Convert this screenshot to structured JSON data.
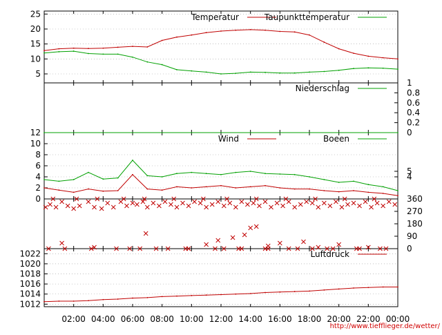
{
  "chart_data": [
    {
      "type": "line",
      "ylim": [
        2,
        26
      ],
      "yticks": [
        "25",
        "20",
        "15",
        "10",
        "5"
      ],
      "grid": "dotted horizontal",
      "legend_placement": "top-right",
      "series": [
        {
          "name": "Temperatur",
          "color": "#c00000",
          "x": [
            0,
            1,
            2,
            3,
            4,
            5,
            6,
            7,
            8,
            9,
            10,
            11,
            12,
            13,
            14,
            15,
            16,
            17,
            18,
            19,
            20,
            21,
            22,
            23,
            24
          ],
          "values": [
            12.8,
            13.4,
            13.6,
            13.5,
            13.6,
            13.9,
            14.2,
            14.0,
            16.2,
            17.3,
            18.0,
            18.8,
            19.3,
            19.6,
            19.8,
            19.6,
            19.2,
            19.0,
            18.0,
            15.6,
            13.4,
            11.9,
            10.9,
            10.4,
            10.0
          ]
        },
        {
          "name": "Taupunkttemperatur",
          "color": "#00a000",
          "x": [
            0,
            1,
            2,
            3,
            4,
            5,
            6,
            7,
            8,
            9,
            10,
            11,
            12,
            13,
            14,
            15,
            16,
            17,
            18,
            19,
            20,
            21,
            22,
            23,
            24
          ],
          "values": [
            12.0,
            12.4,
            12.6,
            11.8,
            11.6,
            11.6,
            10.6,
            9.0,
            8.1,
            6.4,
            6.0,
            5.6,
            5.0,
            5.2,
            5.6,
            5.5,
            5.3,
            5.3,
            5.6,
            5.8,
            6.2,
            6.8,
            7.0,
            6.9,
            6.6
          ]
        }
      ]
    },
    {
      "type": "line",
      "ylim": [
        0,
        1
      ],
      "yticks_right": [
        "1",
        "0.8",
        "0.6",
        "0.4",
        "0.2",
        "0"
      ],
      "legend_placement": "top-right",
      "series": [
        {
          "name": "Niederschlag",
          "color": "#00a000",
          "x": [
            0,
            24
          ],
          "values": [
            0,
            0
          ]
        }
      ]
    },
    {
      "type": "line",
      "ylim": [
        0,
        12
      ],
      "yticks": [
        "12",
        "10",
        "8",
        "6",
        "4",
        "2",
        "0"
      ],
      "yticks_right": [
        "5",
        "4"
      ],
      "legend_placement": "top-right",
      "series": [
        {
          "name": "Wind",
          "color": "#c00000",
          "x": [
            0,
            1,
            2,
            3,
            4,
            5,
            6,
            7,
            8,
            9,
            10,
            11,
            12,
            13,
            14,
            15,
            16,
            17,
            18,
            19,
            20,
            21,
            22,
            23,
            24
          ],
          "values": [
            2.0,
            1.6,
            1.2,
            1.8,
            1.4,
            1.5,
            4.4,
            1.8,
            1.6,
            2.2,
            2.0,
            2.2,
            2.4,
            2.0,
            2.2,
            2.4,
            2.0,
            1.8,
            1.8,
            1.5,
            1.3,
            1.5,
            1.2,
            1.0,
            0.6
          ]
        },
        {
          "name": "Boeen",
          "color": "#00a000",
          "x": [
            0,
            1,
            2,
            3,
            4,
            5,
            6,
            7,
            8,
            9,
            10,
            11,
            12,
            13,
            14,
            15,
            16,
            17,
            18,
            19,
            20,
            21,
            22,
            23,
            24
          ],
          "values": [
            3.5,
            3.2,
            3.5,
            4.8,
            3.6,
            3.8,
            7.0,
            4.2,
            4.0,
            4.6,
            4.8,
            4.6,
            4.4,
            4.8,
            5.0,
            4.6,
            4.5,
            4.4,
            4.0,
            3.5,
            3.0,
            3.2,
            2.6,
            2.2,
            1.5
          ]
        }
      ]
    },
    {
      "type": "scatter",
      "ylim": [
        0,
        360
      ],
      "yticks_right": [
        "360",
        "270",
        "180",
        "90",
        "0"
      ],
      "marker": "x",
      "color": "#c00000",
      "x": [
        0.1,
        0.4,
        0.8,
        1.2,
        1.6,
        2.0,
        2.4,
        3.0,
        3.4,
        3.9,
        4.3,
        4.7,
        5.2,
        5.6,
        6.0,
        6.3,
        6.7,
        7.0,
        7.4,
        7.8,
        8.2,
        8.6,
        9.0,
        9.4,
        9.8,
        10.2,
        10.6,
        11.0,
        11.4,
        11.8,
        12.2,
        12.6,
        13.0,
        13.4,
        13.8,
        14.2,
        14.6,
        15.0,
        15.4,
        15.8,
        16.2,
        16.6,
        17.0,
        17.4,
        17.8,
        18.2,
        18.6,
        19.0,
        19.4,
        19.8,
        20.2,
        20.6,
        21.0,
        21.4,
        21.8,
        22.2,
        22.6,
        23.0,
        23.4,
        23.8,
        0.6,
        2.2,
        3.6,
        5.4,
        6.8,
        8.8,
        10.8,
        12.4,
        14.4,
        16.4,
        18.4,
        20.4,
        22.4,
        0.3,
        1.4,
        3.2,
        4.9,
        6.5,
        8.4,
        9.6,
        11.6,
        13.2,
        15.2,
        17.2,
        19.2,
        21.2,
        23.2,
        6.9,
        11.0,
        11.8,
        12.8,
        13.6,
        14.0,
        14.4,
        15.2,
        16.0,
        17.6,
        18.6,
        20.0,
        22.0,
        1.2,
        3.4,
        5.8,
        7.6,
        9.8,
        12.2,
        13.4,
        15.0,
        16.6,
        18.2,
        19.6,
        21.4,
        22.8
      ],
      "values": [
        300,
        320,
        300,
        340,
        310,
        290,
        310,
        340,
        300,
        290,
        330,
        300,
        340,
        310,
        330,
        320,
        340,
        300,
        330,
        310,
        340,
        320,
        300,
        330,
        310,
        340,
        330,
        300,
        320,
        340,
        310,
        330,
        300,
        340,
        320,
        330,
        310,
        340,
        300,
        330,
        310,
        340,
        300,
        320,
        340,
        330,
        300,
        330,
        310,
        340,
        300,
        320,
        330,
        310,
        340,
        300,
        330,
        310,
        340,
        320,
        360,
        360,
        360,
        360,
        360,
        360,
        360,
        360,
        360,
        360,
        360,
        360,
        360,
        0,
        0,
        0,
        0,
        0,
        0,
        0,
        0,
        0,
        0,
        0,
        0,
        0,
        0,
        110,
        30,
        60,
        80,
        100,
        150,
        160,
        20,
        40,
        50,
        10,
        30,
        10,
        40,
        10,
        0,
        0,
        0,
        0,
        0,
        0,
        0,
        0,
        0,
        0,
        0
      ]
    },
    {
      "type": "line",
      "ylim": [
        1011.5,
        1023
      ],
      "yticks": [
        "1022",
        "1020",
        "1018",
        "1016",
        "1014",
        "1012"
      ],
      "legend_placement": "top-right",
      "series": [
        {
          "name": "Luftdruck",
          "color": "#c00000",
          "x": [
            0,
            1,
            2,
            3,
            4,
            5,
            6,
            7,
            8,
            9,
            10,
            11,
            12,
            13,
            14,
            15,
            16,
            17,
            18,
            19,
            20,
            21,
            22,
            23,
            24
          ],
          "values": [
            1012.5,
            1012.6,
            1012.6,
            1012.7,
            1012.9,
            1013.0,
            1013.2,
            1013.3,
            1013.5,
            1013.6,
            1013.7,
            1013.8,
            1013.9,
            1014.0,
            1014.1,
            1014.3,
            1014.4,
            1014.5,
            1014.6,
            1014.8,
            1015.0,
            1015.2,
            1015.3,
            1015.4,
            1015.4
          ]
        }
      ]
    }
  ],
  "x_axis": {
    "xlim": [
      0,
      24
    ],
    "ticks": [
      {
        "x": 2,
        "label": "02:00"
      },
      {
        "x": 4,
        "label": "04:00"
      },
      {
        "x": 6,
        "label": "06:00"
      },
      {
        "x": 8,
        "label": "08:00"
      },
      {
        "x": 10,
        "label": "10:00"
      },
      {
        "x": 12,
        "label": "12:00"
      },
      {
        "x": 14,
        "label": "14:00"
      },
      {
        "x": 16,
        "label": "16:00"
      },
      {
        "x": 18,
        "label": "18:00"
      },
      {
        "x": 20,
        "label": "20:00"
      },
      {
        "x": 22,
        "label": "22:00"
      },
      {
        "x": 24,
        "label": "00:00"
      }
    ]
  },
  "footer": {
    "url": "http://www.tiefflieger.de/wetter/"
  }
}
